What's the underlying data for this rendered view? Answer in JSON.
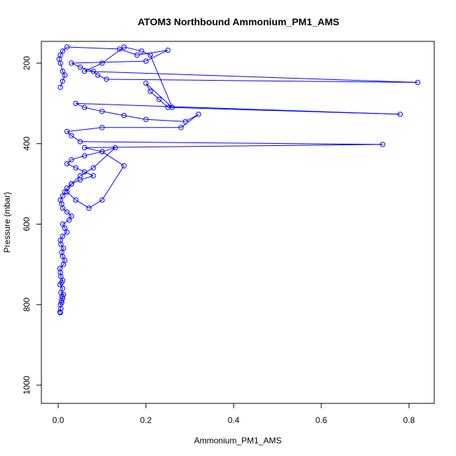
{
  "chart_data": {
    "type": "line",
    "title": "ATOM3 Northbound Ammonium_PM1_AMS",
    "xlabel": "Ammonium_PM1_AMS",
    "ylabel": "Pressure (mbar)",
    "xlim": [
      0,
      0.85
    ],
    "ylim": [
      1050,
      150
    ],
    "y_inverted": true,
    "x_ticks": [
      "0.0",
      "0.2",
      "0.4",
      "0.6",
      "0.8"
    ],
    "x_tick_values": [
      0,
      0.2,
      0.4,
      0.6,
      0.8
    ],
    "y_ticks": [
      "200",
      "400",
      "600",
      "800",
      "1000"
    ],
    "y_tick_values": [
      200,
      400,
      600,
      800,
      1000
    ],
    "grid": false,
    "series_color": "#0000ff",
    "marker": "open-circle",
    "series": [
      {
        "x": [
          0.005,
          0.004,
          0.006,
          0.005,
          0.008,
          0.007,
          0.01,
          0.009,
          0.012,
          0.006,
          0.01,
          0.004,
          0.008,
          0.01,
          0.006,
          0.005,
          0.004,
          0.012,
          0.015,
          0.01,
          0.008,
          0.012,
          0.006,
          0.005,
          0.01,
          0.02,
          0.015,
          0.01,
          0.025,
          0.03,
          0.02,
          0.01,
          0.008,
          0.005,
          0.01,
          0.015,
          0.02,
          0.03,
          0.05,
          0.08,
          0.06,
          0.04,
          0.02,
          0.03,
          0.06,
          0.1,
          0.13,
          0.08,
          0.05,
          0.03,
          0.02,
          0.04,
          0.07,
          0.1,
          0.15,
          0.1,
          0.06,
          0.74,
          0.05,
          0.03,
          0.02,
          0.1,
          0.28,
          0.32,
          0.29,
          0.2,
          0.15,
          0.1,
          0.06,
          0.04,
          0.78,
          0.25,
          0.23,
          0.21,
          0.2,
          0.26,
          0.21,
          0.19,
          0.15,
          0.1,
          0.06,
          0.82,
          0.11,
          0.09,
          0.08,
          0.05,
          0.03,
          0.2,
          0.25,
          0.18,
          0.14,
          0.02,
          0.01,
          0.005,
          0.002,
          0.005,
          0.01,
          0.015,
          0.01,
          0.005
        ],
        "y": [
          820,
          818,
          810,
          800,
          795,
          790,
          785,
          780,
          775,
          770,
          760,
          750,
          745,
          740,
          730,
          720,
          710,
          700,
          690,
          680,
          670,
          660,
          650,
          640,
          630,
          620,
          610,
          600,
          590,
          580,
          570,
          560,
          550,
          540,
          530,
          520,
          510,
          500,
          490,
          480,
          470,
          460,
          450,
          440,
          430,
          420,
          410,
          460,
          480,
          500,
          520,
          540,
          560,
          540,
          455,
          420,
          410,
          402,
          395,
          380,
          370,
          360,
          360,
          327,
          345,
          340,
          330,
          320,
          310,
          300,
          327,
          310,
          290,
          270,
          250,
          310,
          180,
          170,
          160,
          200,
          220,
          248,
          240,
          230,
          220,
          210,
          200,
          195,
          168,
          180,
          165,
          160,
          170,
          180,
          190,
          200,
          220,
          230,
          245,
          260
        ]
      }
    ]
  }
}
